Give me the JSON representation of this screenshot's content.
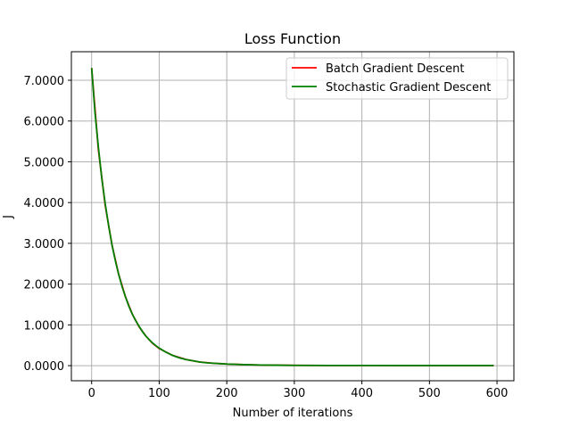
{
  "chart_data": {
    "type": "line",
    "title": "Loss Function",
    "xlabel": "Number of iterations",
    "ylabel": "J",
    "xlim": [
      -30,
      625
    ],
    "ylim": [
      -0.37,
      7.7
    ],
    "xticks": [
      0,
      100,
      200,
      300,
      400,
      500,
      600
    ],
    "yticks": [
      0,
      1,
      2,
      3,
      4,
      5,
      6,
      7
    ],
    "ytick_labels": [
      "0.0000",
      "1.0000",
      "2.0000",
      "3.0000",
      "4.0000",
      "5.0000",
      "6.0000",
      "7.0000"
    ],
    "grid": true,
    "legend_position": "top-right",
    "series": [
      {
        "name": "Batch Gradient Descent",
        "color": "#ff0000",
        "x": [
          0,
          10,
          20,
          30,
          40,
          50,
          60,
          70,
          80,
          90,
          100,
          120,
          140,
          160,
          180,
          200,
          225,
          250,
          275,
          300,
          350,
          400,
          450,
          500,
          550,
          595
        ],
        "y": [
          7.3,
          5.29,
          3.94,
          2.97,
          2.24,
          1.69,
          1.27,
          0.96,
          0.73,
          0.55,
          0.42,
          0.25,
          0.15,
          0.09,
          0.06,
          0.04,
          0.025,
          0.016,
          0.011,
          0.008,
          0.005,
          0.004,
          0.003,
          0.003,
          0.003,
          0.003
        ]
      },
      {
        "name": "Stochastic Gradient Descent",
        "color": "#008000",
        "x": [
          0,
          5,
          10,
          15,
          20,
          25,
          30,
          35,
          40,
          45,
          50,
          55,
          60,
          65,
          70,
          75,
          80,
          85,
          90,
          95,
          100,
          110,
          120,
          130,
          140,
          150,
          160,
          170,
          180,
          190,
          200,
          225,
          250,
          275,
          300,
          350,
          400,
          450,
          500,
          550,
          595
        ],
        "y": [
          7.3,
          6.2,
          5.35,
          4.6,
          3.98,
          3.45,
          2.97,
          2.58,
          2.24,
          1.94,
          1.69,
          1.46,
          1.27,
          1.11,
          0.97,
          0.84,
          0.73,
          0.64,
          0.56,
          0.49,
          0.43,
          0.33,
          0.25,
          0.19,
          0.15,
          0.12,
          0.09,
          0.07,
          0.06,
          0.05,
          0.04,
          0.025,
          0.016,
          0.011,
          0.008,
          0.005,
          0.004,
          0.003,
          0.003,
          0.003,
          0.003
        ]
      }
    ]
  }
}
